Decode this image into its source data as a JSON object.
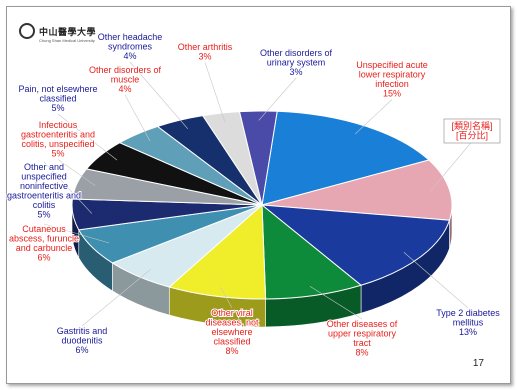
{
  "logo": {
    "text": "中山醫學大學",
    "subtext": "Chung Shan Medical University"
  },
  "page_number": "17",
  "chart_data": {
    "type": "pie",
    "legend_box": [
      "[類別名稱]",
      "[百分比]"
    ],
    "slices": [
      {
        "name": "Unspecified acute lower respiratory infection",
        "value": 15,
        "label": "15%",
        "color": "#1a7fd6"
      },
      {
        "name": "[類別名稱]",
        "value": 10,
        "label": "",
        "color": "#e6a7b3"
      },
      {
        "name": "Type 2 diabetes mellitus",
        "value": 13,
        "label": "13%",
        "color": "#1a3a9e"
      },
      {
        "name": "Other diseases of upper respiratory tract",
        "value": 8,
        "label": "8%",
        "color": "#0d8a3a"
      },
      {
        "name": "Other viral diseases, not elsewhere classified",
        "value": 8,
        "label": "8%",
        "color": "#f0ee2a"
      },
      {
        "name": "Gastritis and duodenitis",
        "value": 6,
        "label": "6%",
        "color": "#d6eaf0"
      },
      {
        "name": "Cutaneous abscess, furuncle and carbuncle",
        "value": 6,
        "label": "6%",
        "color": "#3e8fb0"
      },
      {
        "name": "Other and unspecified noninfective gastroenteritis and colitis",
        "value": 5,
        "label": "5%",
        "color": "#1c2a70"
      },
      {
        "name": "Infectious gastroenteritis and colitis, unspecified",
        "value": 5,
        "label": "5%",
        "color": "#9aa0a6"
      },
      {
        "name": "Pain, not elsewhere classified",
        "value": 5,
        "label": "5%",
        "color": "#111111"
      },
      {
        "name": "Other disorders of muscle",
        "value": 4,
        "label": "4%",
        "color": "#5fa0b8"
      },
      {
        "name": "Other headache syndromes",
        "value": 4,
        "label": "4%",
        "color": "#16306e"
      },
      {
        "name": "Other arthritis",
        "value": 3,
        "label": "3%",
        "color": "#dcdcdc"
      },
      {
        "name": "Other disorders of urinary system",
        "value": 3,
        "label": "3%",
        "color": "#4a4aa8"
      }
    ]
  }
}
